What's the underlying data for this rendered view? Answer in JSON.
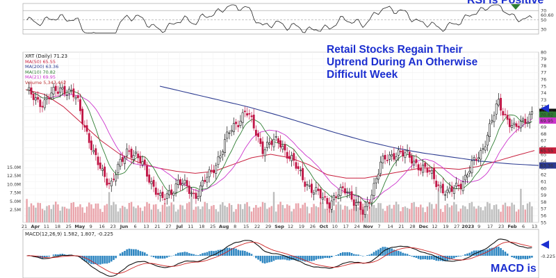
{
  "colors": {
    "up": "#111111",
    "down": "#c01545",
    "ma50": "#c81e3c",
    "ma200": "#2b3a90",
    "ma10": "#2e7d32",
    "ma21": "#cc33cc",
    "volume": "#e9a3aa",
    "volume_up": "#bdbdbd",
    "annotation": "#1c2fd0",
    "macd": "#111111",
    "signal": "#cc2020",
    "histogram": "#2e86c1",
    "rsi": "#222222"
  },
  "annotations": {
    "rsi_note": "RSI is Positive",
    "title_line1": "Retail Stocks Regain Their",
    "title_line2": "Uptrend During An Otherwise",
    "title_line3": "Difficult Week",
    "macd_note": "MACD is"
  },
  "legend": {
    "symbol": "XRT (Daily) 71.23",
    "ma50": "MA(50) 65.55",
    "ma200": "MA(200) 63.36",
    "ma10": "MA(10) 70.82",
    "ma21": "MA(21) 69.95",
    "volume": "Volume 5,347,462"
  },
  "macd_label": "MACD(12,26,9) 1.582, 1.807, -0.225",
  "chart_data": {
    "type": "candlestick",
    "price_axis": {
      "ylim": [
        55,
        80
      ],
      "ticks": [
        55,
        56,
        57,
        58,
        59,
        60,
        61,
        62,
        63,
        64,
        65,
        66,
        67,
        68,
        69,
        70,
        71,
        72,
        73,
        74,
        75,
        76,
        77,
        78,
        79,
        80
      ]
    },
    "price_badges": [
      "71.23",
      "70.82",
      "69.95",
      "65.55",
      "63.36"
    ],
    "volume_axis": {
      "ylim": [
        0,
        20000000
      ],
      "ticks": [
        "15.0M",
        "12.5M",
        "10.0M",
        "7.5M",
        "5.0M",
        "2.5M"
      ]
    },
    "rsi_axis": {
      "ticks": [
        70,
        50,
        30
      ],
      "current": "60.60"
    },
    "macd_axis": {
      "current": "-0.225"
    },
    "x_ticks": [
      "21",
      "Apr",
      "11",
      "18",
      "25",
      "May",
      "9",
      "16",
      "23",
      "Jun",
      "6",
      "13",
      "21",
      "27",
      "Jul",
      "11",
      "18",
      "25",
      "Aug",
      "8",
      "15",
      "22",
      "29",
      "Sep",
      "12",
      "19",
      "26",
      "Oct",
      "10",
      "17",
      "24",
      "Nov",
      "7",
      "14",
      "21",
      "28",
      "Dec",
      "12",
      "19",
      "27",
      "2023",
      "9",
      "17",
      "23",
      "Feb",
      "6",
      "13"
    ],
    "key_points": {
      "x": [
        "Mar 21",
        "Apr 1",
        "Apr 19",
        "May 1",
        "May 9",
        "May 23",
        "Jun 6",
        "Jun 13",
        "Jun 17",
        "Jul 5",
        "Jul 14",
        "Jul 26",
        "Aug 8",
        "Aug 16",
        "Aug 26",
        "Sep 2",
        "Sep 13",
        "Sep 26",
        "Oct 3",
        "Oct 13",
        "Oct 24",
        "Nov 10",
        "Nov 23",
        "Dec 1",
        "Dec 13",
        "Dec 22",
        "Jan 5",
        "Jan 20",
        "Feb 1",
        "Feb 9",
        "Feb 17"
      ],
      "close": [
        74.0,
        72.5,
        75.0,
        73.0,
        64.5,
        60.5,
        66.0,
        63.0,
        58.0,
        61.0,
        59.0,
        62.5,
        68.0,
        71.5,
        66.0,
        67.0,
        63.0,
        59.5,
        58.0,
        60.0,
        56.0,
        63.5,
        65.5,
        64.0,
        62.0,
        59.0,
        61.5,
        65.5,
        72.5,
        68.5,
        71.23
      ]
    },
    "ma50_series": [
      74.5,
      73.8,
      72.0,
      69.5,
      67.0,
      65.0,
      63.8,
      63.0,
      62.5,
      62.2,
      62.5,
      63.5,
      64.5,
      65.0,
      64.5,
      63.5,
      62.0,
      61.5,
      61.5,
      62.0,
      62.5,
      63.0,
      63.0,
      62.8,
      63.2,
      64.0,
      64.8,
      65.55
    ],
    "ma200_series": [
      75.0,
      74.0,
      73.0,
      72.0,
      70.8,
      69.5,
      68.2,
      67.0,
      66.0,
      65.2,
      64.6,
      64.0,
      63.6,
      63.36
    ]
  }
}
